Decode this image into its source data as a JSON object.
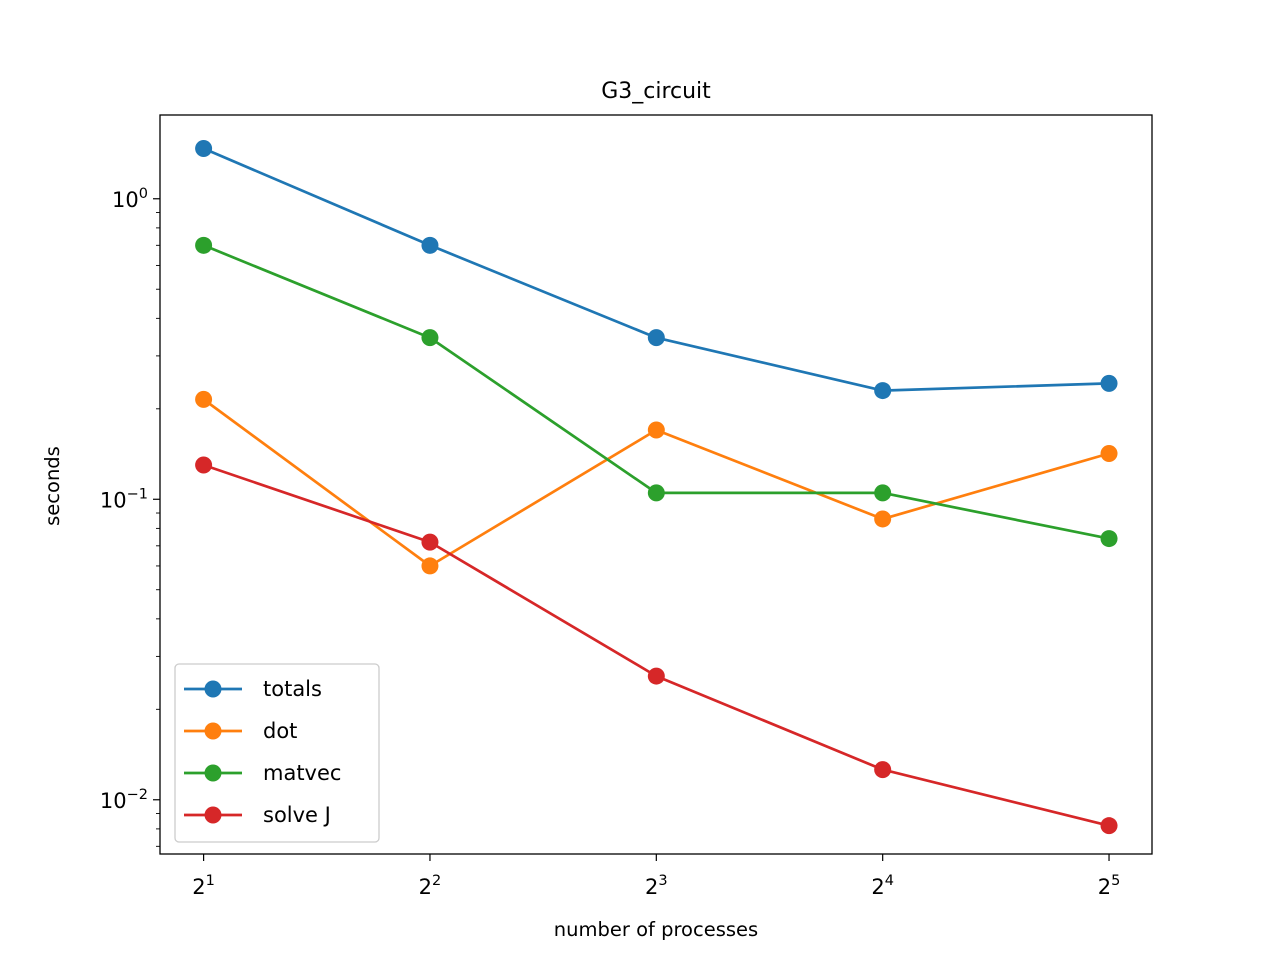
{
  "chart_data": {
    "type": "line",
    "title": "G3_circuit",
    "xlabel": "number of processes",
    "ylabel": "seconds",
    "xscale": "log2",
    "yscale": "log10",
    "x": [
      2,
      4,
      8,
      16,
      32
    ],
    "x_tick_labels": [
      {
        "base": "2",
        "exp": "1"
      },
      {
        "base": "2",
        "exp": "2"
      },
      {
        "base": "2",
        "exp": "3"
      },
      {
        "base": "2",
        "exp": "4"
      },
      {
        "base": "2",
        "exp": "5"
      }
    ],
    "y_tick_labels": [
      {
        "value": 1,
        "base": "10",
        "exp": "0"
      },
      {
        "value": 0.1,
        "base": "10",
        "exp": "−1"
      },
      {
        "value": 0.01,
        "base": "10",
        "exp": "−2"
      }
    ],
    "xlim": [
      1.75,
      36.5
    ],
    "ylim": [
      0.0066,
      1.9
    ],
    "legend_position": "lower-left",
    "series": [
      {
        "name": "totals",
        "color": "#1f77b4",
        "values": [
          1.47,
          0.7,
          0.345,
          0.23,
          0.243
        ]
      },
      {
        "name": "dot",
        "color": "#ff7f0e",
        "values": [
          0.215,
          0.06,
          0.17,
          0.086,
          0.142
        ]
      },
      {
        "name": "matvec",
        "color": "#2ca02c",
        "values": [
          0.7,
          0.345,
          0.105,
          0.105,
          0.074
        ]
      },
      {
        "name": "solve J",
        "color": "#d62728",
        "values": [
          0.13,
          0.072,
          0.0258,
          0.0126,
          0.0082
        ]
      }
    ]
  }
}
